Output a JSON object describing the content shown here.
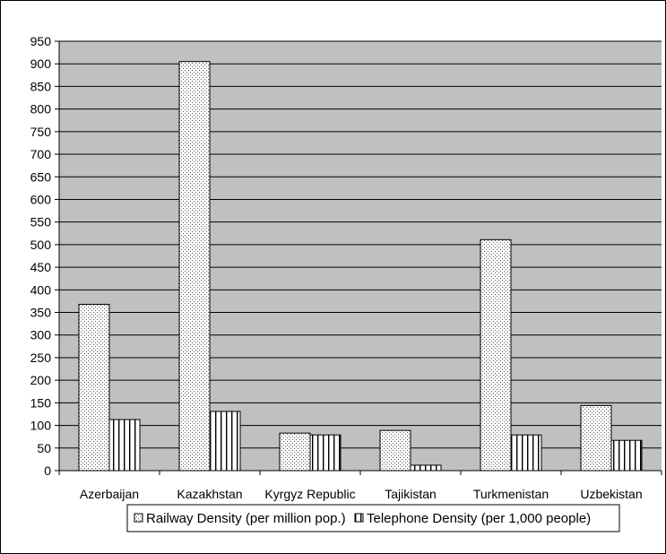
{
  "chart_data": {
    "type": "bar",
    "categories": [
      "Azerbaijan",
      "Kazakhstan",
      "Kyrgyz Republic",
      "Tajikistan",
      "Turkmenistan",
      "Uzbekistan"
    ],
    "series": [
      {
        "name": "Railway Density (per million pop.)",
        "values": [
          368,
          905,
          83,
          89,
          511,
          144
        ],
        "pattern": "dots"
      },
      {
        "name": "Telephone Density (per 1,000 people)",
        "values": [
          113,
          131,
          79,
          12,
          79,
          67
        ],
        "pattern": "vertical-stripes"
      }
    ],
    "yticks": [
      0,
      50,
      100,
      150,
      200,
      250,
      300,
      350,
      400,
      450,
      500,
      550,
      600,
      650,
      700,
      750,
      800,
      850,
      900,
      950
    ],
    "ylim": [
      0,
      950
    ],
    "grid": true,
    "legend_position": "bottom",
    "colors": {
      "plot_background": "#c0c0c0",
      "bar_fill": "#ffffff",
      "outline": "#000000"
    }
  }
}
